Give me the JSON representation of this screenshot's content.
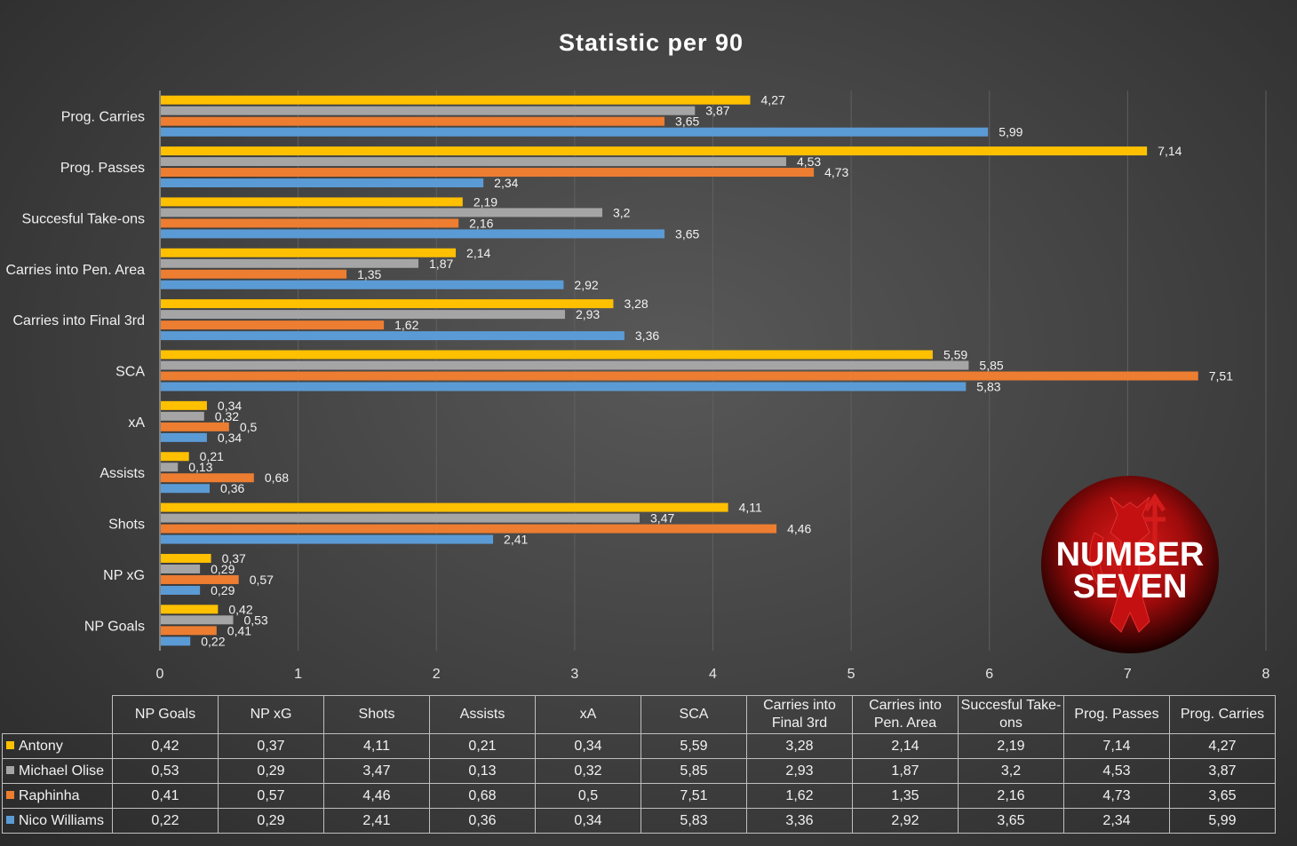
{
  "chart_data": {
    "type": "bar",
    "orientation": "horizontal",
    "title": "Statistic per 90",
    "categories": [
      "NP Goals",
      "NP xG",
      "Shots",
      "Assists",
      "xA",
      "SCA",
      "Carries into Final 3rd",
      "Carries into Pen. Area",
      "Succesful Take-ons",
      "Prog. Passes",
      "Prog. Carries"
    ],
    "table_headers": [
      "NP Goals",
      "NP xG",
      "Shots",
      "Assists",
      "xA",
      "SCA",
      "Carries into Final 3rd",
      "Carries into Pen. Area",
      "Succesful Take-ons",
      "Prog. Passes",
      "Prog. Carries"
    ],
    "series": [
      {
        "name": "Antony",
        "color": "#ffc000",
        "values": [
          0.42,
          0.37,
          4.11,
          0.21,
          0.34,
          5.59,
          3.28,
          2.14,
          2.19,
          7.14,
          4.27
        ],
        "labels": [
          "0,42",
          "0,37",
          "4,11",
          "0,21",
          "0,34",
          "5,59",
          "3,28",
          "2,14",
          "2,19",
          "7,14",
          "4,27"
        ]
      },
      {
        "name": "Michael Olise",
        "color": "#a5a5a5",
        "values": [
          0.53,
          0.29,
          3.47,
          0.13,
          0.32,
          5.85,
          2.93,
          1.87,
          3.2,
          4.53,
          3.87
        ],
        "labels": [
          "0,53",
          "0,29",
          "3,47",
          "0,13",
          "0,32",
          "5,85",
          "2,93",
          "1,87",
          "3,2",
          "4,53",
          "3,87"
        ]
      },
      {
        "name": "Raphinha",
        "color": "#ed7d31",
        "values": [
          0.41,
          0.57,
          4.46,
          0.68,
          0.5,
          7.51,
          1.62,
          1.35,
          2.16,
          4.73,
          3.65
        ],
        "labels": [
          "0,41",
          "0,57",
          "4,46",
          "0,68",
          "0,5",
          "7,51",
          "1,62",
          "1,35",
          "2,16",
          "4,73",
          "3,65"
        ]
      },
      {
        "name": "Nico Williams",
        "color": "#5b9bd5",
        "values": [
          0.22,
          0.29,
          2.41,
          0.36,
          0.34,
          5.83,
          3.36,
          2.92,
          3.65,
          2.34,
          5.99
        ],
        "labels": [
          "0,22",
          "0,29",
          "2,41",
          "0,36",
          "0,34",
          "5,83",
          "3,36",
          "2,92",
          "3,65",
          "2,34",
          "5,99"
        ]
      }
    ],
    "xlim": [
      0,
      8
    ],
    "xticks": [
      "0",
      "1",
      "2",
      "3",
      "4",
      "5",
      "6",
      "7",
      "8"
    ],
    "grid": "vertical",
    "legend": "data-table-below"
  },
  "logo": {
    "line1": "NUMBER",
    "line2": "SEVEN",
    "icon": "red-devil-trident-icon"
  }
}
